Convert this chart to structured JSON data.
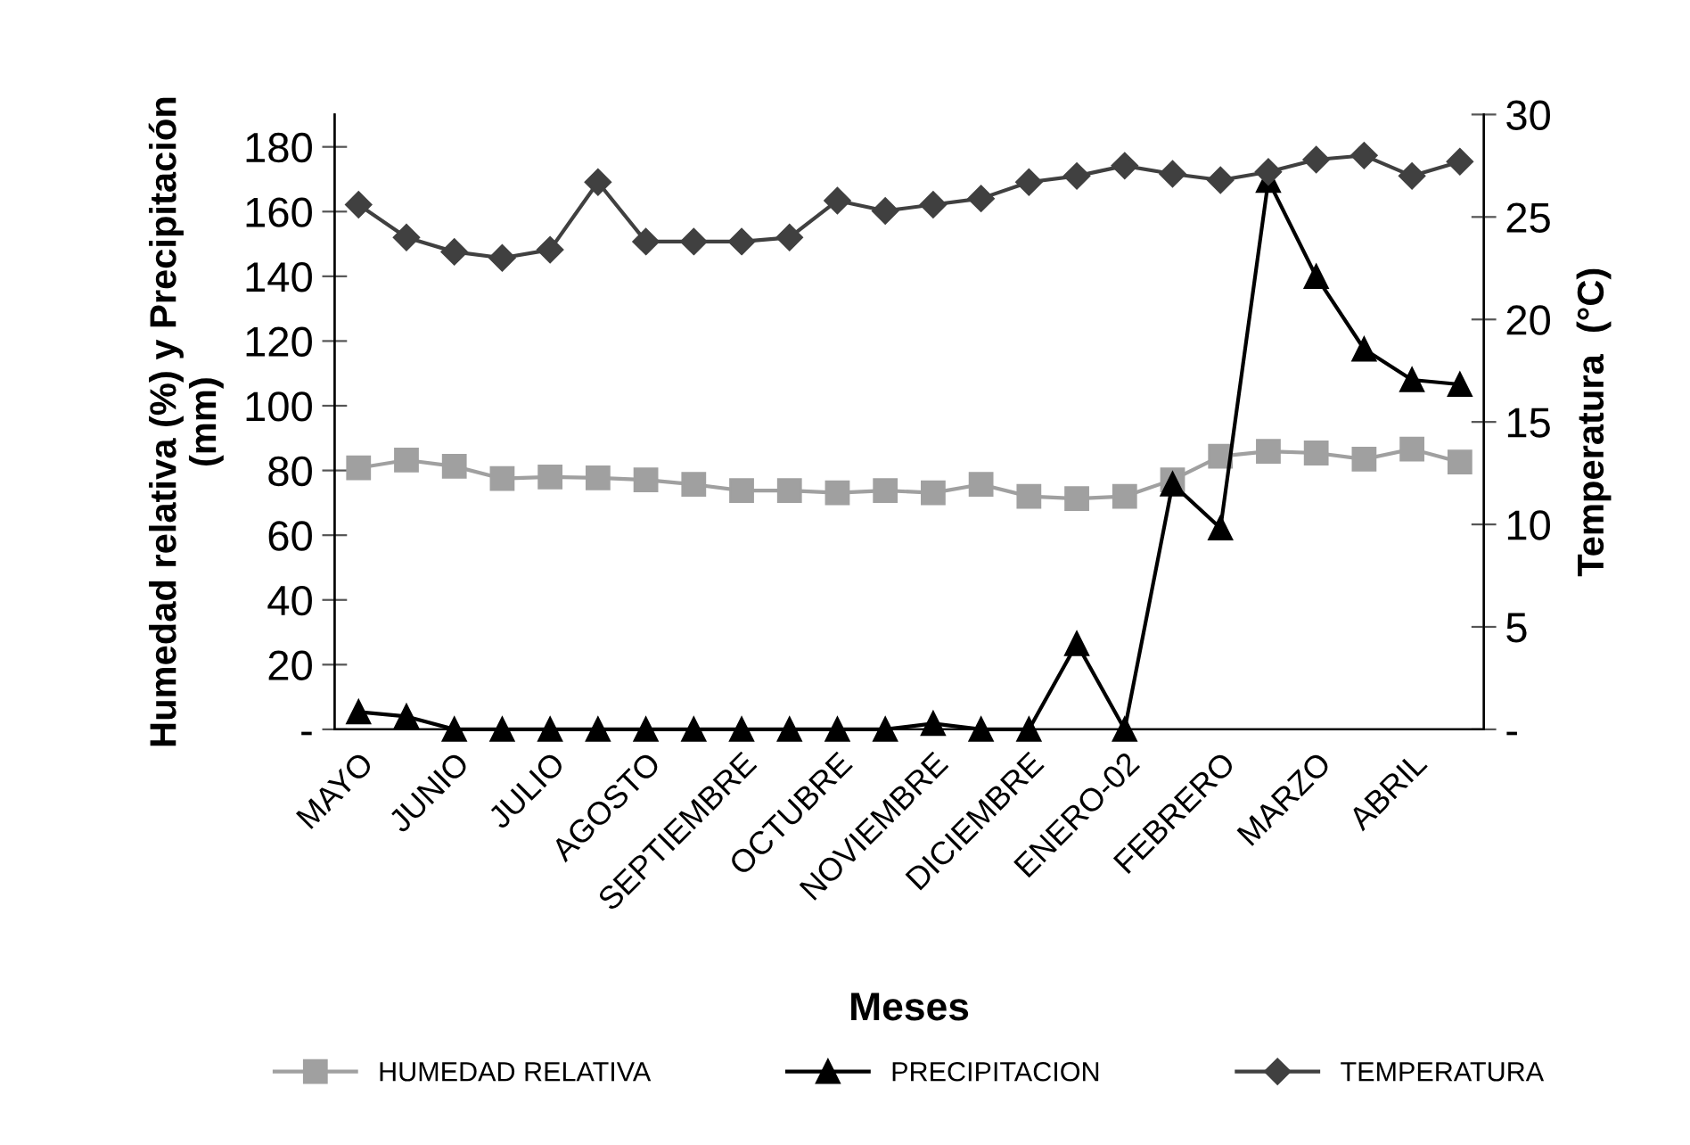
{
  "chart_data": {
    "type": "line",
    "categories": [
      "MAYO",
      null,
      "JUNIO",
      null,
      "JULIO",
      null,
      "AGOSTO",
      null,
      "SEPTIEMBRE",
      null,
      "OCTUBRE",
      null,
      "NOVIEMBRE",
      null,
      "DICIEMBRE",
      null,
      "ENERO-02",
      null,
      "FEBRERO",
      null,
      "MARZO",
      null,
      "ABRIL",
      null
    ],
    "series": [
      {
        "name": "HUMEDAD RELATIVA",
        "color": "#a0a0a0",
        "marker": "square",
        "values": [
          80.8,
          83.2,
          81.3,
          77.5,
          78.0,
          77.7,
          77.1,
          75.7,
          73.8,
          73.8,
          73.1,
          73.8,
          73.1,
          75.7,
          72.0,
          71.3,
          72.0,
          77.1,
          84.4,
          85.9,
          85.4,
          83.5,
          86.6,
          82.6
        ]
      },
      {
        "name": "PRECIPITACION",
        "color": "#000000",
        "marker": "triangle",
        "values": [
          5.4,
          4.0,
          0,
          0,
          0,
          0,
          0,
          0,
          0,
          0,
          0,
          0,
          1.8,
          0,
          0,
          26.5,
          0,
          75.8,
          62.2,
          169.6,
          139.9,
          117.5,
          108.0,
          106.6
        ]
      },
      {
        "name": "TEMPERATURA",
        "color": "#404040",
        "marker": "diamond",
        "axis": "y2",
        "values": [
          25.6,
          24.0,
          23.3,
          23.0,
          23.4,
          26.7,
          23.8,
          23.8,
          23.8,
          24.0,
          25.8,
          25.3,
          25.6,
          25.9,
          26.7,
          27.0,
          27.5,
          27.1,
          26.8,
          27.2,
          27.8,
          28.0,
          27.0,
          27.7
        ]
      }
    ],
    "xlabel": "Meses",
    "ylabel": "Humedad relativa (%) y Precipitación\n(mm)",
    "y2label": "Temperatura  (°C)",
    "ylim": [
      0,
      190
    ],
    "yticks": [
      {
        "value": 0,
        "label": "-"
      },
      20,
      40,
      60,
      80,
      100,
      120,
      140,
      160,
      180
    ],
    "y2lim": [
      0,
      30
    ],
    "y2ticks": [
      {
        "value": 0,
        "label": "-"
      },
      5,
      10,
      15,
      20,
      25,
      30
    ],
    "grid": false,
    "legend": "bottom",
    "line_style": "solid"
  }
}
